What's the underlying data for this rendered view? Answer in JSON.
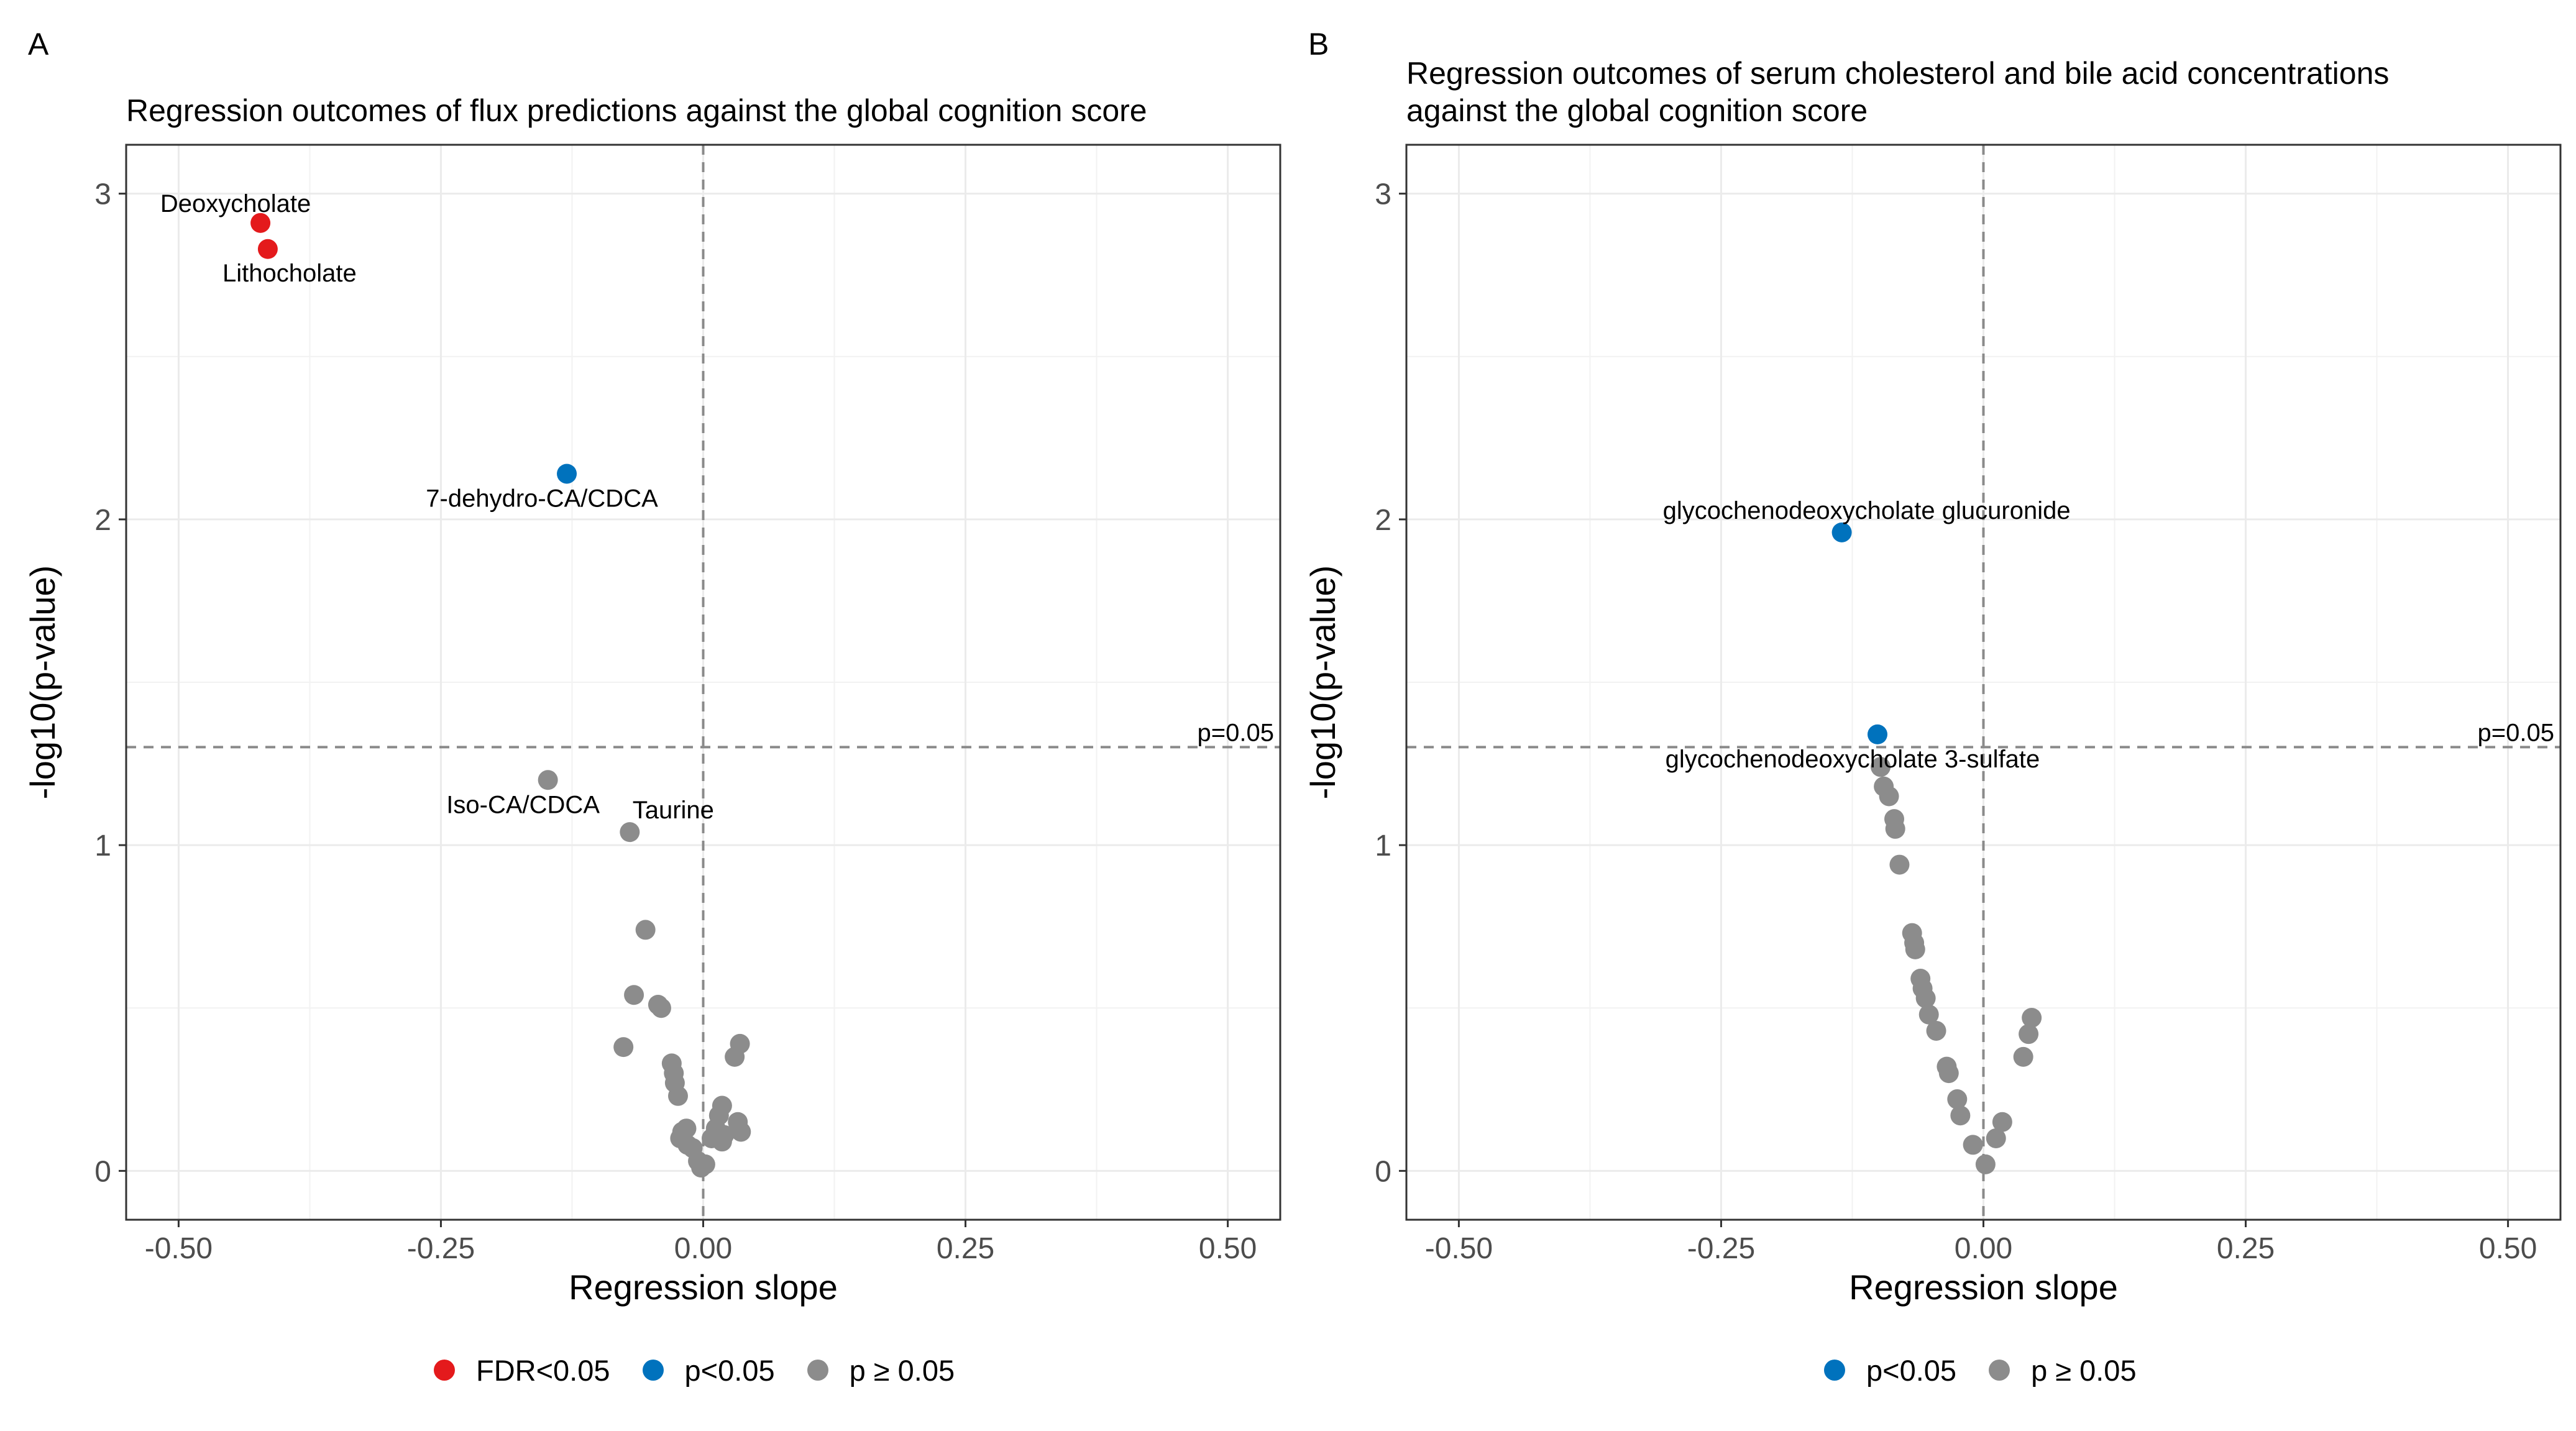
{
  "colors": {
    "fdr": "#E41A1C",
    "p_sig": "#0072BD",
    "p_ns": "#8C8C8C"
  },
  "chart_data": [
    {
      "panel_letter": "A",
      "type": "scatter",
      "title": "Regression outcomes of flux predictions against the global cognition score",
      "xlabel": "Regression slope",
      "ylabel": "-log10(p-value)",
      "xlim": [
        -0.55,
        0.55
      ],
      "ylim": [
        -0.15,
        3.15
      ],
      "xticks": [
        -0.5,
        -0.25,
        0.0,
        0.25,
        0.5
      ],
      "xtick_labels": [
        "-0.50",
        "-0.25",
        "0.00",
        "0.25",
        "0.50"
      ],
      "yticks": [
        0,
        1,
        2,
        3
      ],
      "ytick_labels": [
        "0",
        "1",
        "2",
        "3"
      ],
      "grid": true,
      "ref_lines": {
        "vline_x": 0,
        "hline_y": 1.301,
        "hline_label": "p=0.05"
      },
      "legend": [
        {
          "label": "FDR<0.05",
          "group": "fdr"
        },
        {
          "label": "p<0.05",
          "group": "p_sig"
        },
        {
          "label": "p ≥ 0.05",
          "group": "p_ns"
        }
      ],
      "legend_position": "bottom",
      "points": [
        {
          "x": -0.422,
          "y": 2.91,
          "group": "fdr",
          "label": "Deoxycholate",
          "label_pos": "above-left"
        },
        {
          "x": -0.415,
          "y": 2.83,
          "group": "fdr",
          "label": "Lithocholate",
          "label_pos": "below"
        },
        {
          "x": -0.13,
          "y": 2.14,
          "group": "p_sig",
          "label": "7-dehydro-CA/CDCA",
          "label_pos": "below-left"
        },
        {
          "x": -0.148,
          "y": 1.2,
          "group": "p_ns",
          "label": "Iso-CA/CDCA",
          "label_pos": "below-left"
        },
        {
          "x": -0.07,
          "y": 1.04,
          "group": "p_ns",
          "label": "Taurine",
          "label_pos": "above-right"
        },
        {
          "x": -0.055,
          "y": 0.74,
          "group": "p_ns"
        },
        {
          "x": -0.066,
          "y": 0.54,
          "group": "p_ns"
        },
        {
          "x": -0.043,
          "y": 0.51,
          "group": "p_ns"
        },
        {
          "x": -0.04,
          "y": 0.5,
          "group": "p_ns"
        },
        {
          "x": -0.076,
          "y": 0.38,
          "group": "p_ns"
        },
        {
          "x": -0.03,
          "y": 0.33,
          "group": "p_ns"
        },
        {
          "x": -0.028,
          "y": 0.3,
          "group": "p_ns"
        },
        {
          "x": -0.027,
          "y": 0.27,
          "group": "p_ns"
        },
        {
          "x": -0.024,
          "y": 0.23,
          "group": "p_ns"
        },
        {
          "x": -0.02,
          "y": 0.12,
          "group": "p_ns"
        },
        {
          "x": -0.016,
          "y": 0.13,
          "group": "p_ns"
        },
        {
          "x": -0.022,
          "y": 0.1,
          "group": "p_ns"
        },
        {
          "x": -0.015,
          "y": 0.08,
          "group": "p_ns"
        },
        {
          "x": -0.01,
          "y": 0.07,
          "group": "p_ns"
        },
        {
          "x": -0.005,
          "y": 0.03,
          "group": "p_ns"
        },
        {
          "x": -0.002,
          "y": 0.01,
          "group": "p_ns"
        },
        {
          "x": 0.002,
          "y": 0.02,
          "group": "p_ns"
        },
        {
          "x": 0.008,
          "y": 0.1,
          "group": "p_ns"
        },
        {
          "x": 0.012,
          "y": 0.13,
          "group": "p_ns"
        },
        {
          "x": 0.015,
          "y": 0.17,
          "group": "p_ns"
        },
        {
          "x": 0.018,
          "y": 0.2,
          "group": "p_ns"
        },
        {
          "x": 0.02,
          "y": 0.11,
          "group": "p_ns"
        },
        {
          "x": 0.018,
          "y": 0.09,
          "group": "p_ns"
        },
        {
          "x": 0.03,
          "y": 0.35,
          "group": "p_ns"
        },
        {
          "x": 0.035,
          "y": 0.39,
          "group": "p_ns"
        },
        {
          "x": 0.033,
          "y": 0.15,
          "group": "p_ns"
        },
        {
          "x": 0.036,
          "y": 0.12,
          "group": "p_ns"
        }
      ]
    },
    {
      "panel_letter": "B",
      "type": "scatter",
      "title": "Regression outcomes of serum cholesterol and bile acid concentrations\nagainst the global cognition score",
      "xlabel": "Regression slope",
      "ylabel": "-log10(p-value)",
      "xlim": [
        -0.55,
        0.55
      ],
      "ylim": [
        -0.15,
        3.15
      ],
      "xticks": [
        -0.5,
        -0.25,
        0.0,
        0.25,
        0.5
      ],
      "xtick_labels": [
        "-0.50",
        "-0.25",
        "0.00",
        "0.25",
        "0.50"
      ],
      "yticks": [
        0,
        1,
        2,
        3
      ],
      "ytick_labels": [
        "0",
        "1",
        "2",
        "3"
      ],
      "grid": true,
      "ref_lines": {
        "vline_x": 0,
        "hline_y": 1.301,
        "hline_label": "p=0.05"
      },
      "legend": [
        {
          "label": "p<0.05",
          "group": "p_sig"
        },
        {
          "label": "p ≥ 0.05",
          "group": "p_ns"
        }
      ],
      "legend_position": "bottom",
      "points": [
        {
          "x": -0.135,
          "y": 1.96,
          "group": "p_sig",
          "label": "glycochenodeoxycholate glucuronide",
          "label_pos": "above"
        },
        {
          "x": -0.101,
          "y": 1.34,
          "group": "p_sig",
          "label": "glycochenodeoxycholate 3-sulfate",
          "label_pos": "below-left"
        },
        {
          "x": -0.098,
          "y": 1.24,
          "group": "p_ns"
        },
        {
          "x": -0.095,
          "y": 1.18,
          "group": "p_ns"
        },
        {
          "x": -0.09,
          "y": 1.15,
          "group": "p_ns"
        },
        {
          "x": -0.085,
          "y": 1.08,
          "group": "p_ns"
        },
        {
          "x": -0.084,
          "y": 1.05,
          "group": "p_ns"
        },
        {
          "x": -0.08,
          "y": 0.94,
          "group": "p_ns"
        },
        {
          "x": -0.068,
          "y": 0.73,
          "group": "p_ns"
        },
        {
          "x": -0.066,
          "y": 0.7,
          "group": "p_ns"
        },
        {
          "x": -0.065,
          "y": 0.68,
          "group": "p_ns"
        },
        {
          "x": -0.06,
          "y": 0.59,
          "group": "p_ns"
        },
        {
          "x": -0.058,
          "y": 0.56,
          "group": "p_ns"
        },
        {
          "x": -0.055,
          "y": 0.53,
          "group": "p_ns"
        },
        {
          "x": -0.052,
          "y": 0.48,
          "group": "p_ns"
        },
        {
          "x": -0.045,
          "y": 0.43,
          "group": "p_ns"
        },
        {
          "x": -0.035,
          "y": 0.32,
          "group": "p_ns"
        },
        {
          "x": -0.033,
          "y": 0.3,
          "group": "p_ns"
        },
        {
          "x": -0.025,
          "y": 0.22,
          "group": "p_ns"
        },
        {
          "x": -0.022,
          "y": 0.17,
          "group": "p_ns"
        },
        {
          "x": -0.01,
          "y": 0.08,
          "group": "p_ns"
        },
        {
          "x": 0.002,
          "y": 0.02,
          "group": "p_ns"
        },
        {
          "x": 0.012,
          "y": 0.1,
          "group": "p_ns"
        },
        {
          "x": 0.018,
          "y": 0.15,
          "group": "p_ns"
        },
        {
          "x": 0.038,
          "y": 0.35,
          "group": "p_ns"
        },
        {
          "x": 0.043,
          "y": 0.42,
          "group": "p_ns"
        },
        {
          "x": 0.046,
          "y": 0.47,
          "group": "p_ns"
        }
      ]
    }
  ]
}
